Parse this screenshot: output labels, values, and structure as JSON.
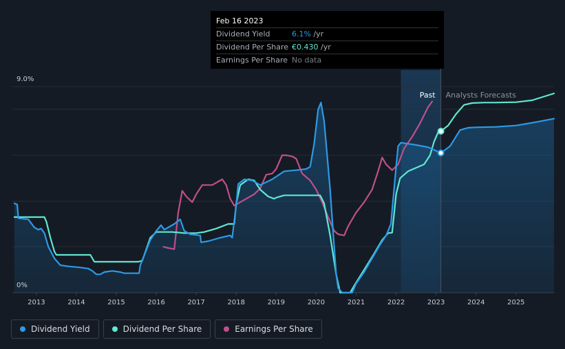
{
  "tooltip": {
    "date": "Feb 16 2023",
    "rows": [
      {
        "label": "Dividend Yield",
        "value": "6.1%",
        "unit": " /yr",
        "color": "#2e9ae6"
      },
      {
        "label": "Dividend Per Share",
        "value": "€0.430",
        "unit": " /yr",
        "color": "#5fe8d2"
      },
      {
        "label": "Earnings Per Share",
        "value": "No data",
        "unit": "",
        "color": "#7a7f87"
      }
    ]
  },
  "legend": [
    {
      "label": "Dividend Yield",
      "color": "#2e9ae6"
    },
    {
      "label": "Dividend Per Share",
      "color": "#5fe8d2"
    },
    {
      "label": "Earnings Per Share",
      "color": "#c04f8a"
    }
  ],
  "chart_data": {
    "type": "line",
    "y_top_label": "9.0%",
    "y_bottom_label": "0%",
    "ylim": [
      0,
      9
    ],
    "xlim": [
      2012.4,
      2025.95
    ],
    "x_ticks": [
      "2013",
      "2014",
      "2015",
      "2016",
      "2017",
      "2018",
      "2019",
      "2020",
      "2021",
      "2022",
      "2023",
      "2024",
      "2025"
    ],
    "divider_x": 2023.12,
    "shade_start_x": 2022.12,
    "past_label": "Past",
    "forecast_label": "Analysts Forecasts",
    "grid": true,
    "series": [
      {
        "name": "Dividend Yield",
        "color": "#2e9ae6",
        "fill": true,
        "points": [
          [
            2012.45,
            3.9
          ],
          [
            2012.52,
            3.85
          ],
          [
            2012.55,
            3.25
          ],
          [
            2012.8,
            3.2
          ],
          [
            2012.95,
            2.85
          ],
          [
            2013.05,
            2.75
          ],
          [
            2013.12,
            2.8
          ],
          [
            2013.2,
            2.6
          ],
          [
            2013.3,
            2.0
          ],
          [
            2013.45,
            1.5
          ],
          [
            2013.55,
            1.3
          ],
          [
            2013.6,
            1.2
          ],
          [
            2013.8,
            1.15
          ],
          [
            2014.1,
            1.1
          ],
          [
            2014.3,
            1.05
          ],
          [
            2014.4,
            0.95
          ],
          [
            2014.5,
            0.8
          ],
          [
            2014.6,
            0.8
          ],
          [
            2014.7,
            0.9
          ],
          [
            2014.9,
            0.95
          ],
          [
            2015.1,
            0.9
          ],
          [
            2015.2,
            0.85
          ],
          [
            2015.5,
            0.85
          ],
          [
            2015.57,
            0.85
          ],
          [
            2015.6,
            1.2
          ],
          [
            2015.85,
            2.3
          ],
          [
            2016.0,
            2.7
          ],
          [
            2016.12,
            2.95
          ],
          [
            2016.2,
            2.75
          ],
          [
            2016.45,
            3.0
          ],
          [
            2016.6,
            3.2
          ],
          [
            2016.7,
            2.7
          ],
          [
            2016.85,
            2.55
          ],
          [
            2017.1,
            2.5
          ],
          [
            2017.12,
            2.2
          ],
          [
            2017.3,
            2.25
          ],
          [
            2017.6,
            2.4
          ],
          [
            2017.85,
            2.5
          ],
          [
            2017.9,
            2.4
          ],
          [
            2018.0,
            3.85
          ],
          [
            2018.05,
            4.75
          ],
          [
            2018.2,
            4.95
          ],
          [
            2018.4,
            4.9
          ],
          [
            2018.6,
            4.7
          ],
          [
            2018.9,
            4.95
          ],
          [
            2019.2,
            5.3
          ],
          [
            2019.5,
            5.35
          ],
          [
            2019.75,
            5.4
          ],
          [
            2019.85,
            5.5
          ],
          [
            2019.95,
            6.5
          ],
          [
            2020.05,
            8.0
          ],
          [
            2020.12,
            8.3
          ],
          [
            2020.2,
            7.5
          ],
          [
            2020.35,
            4.5
          ],
          [
            2020.45,
            2.0
          ],
          [
            2020.5,
            0.8
          ],
          [
            2020.55,
            0.2
          ],
          [
            2020.65,
            0.0
          ],
          [
            2020.9,
            0.0
          ],
          [
            2021.0,
            0.4
          ],
          [
            2021.2,
            0.9
          ],
          [
            2021.4,
            1.5
          ],
          [
            2021.6,
            2.1
          ],
          [
            2021.75,
            2.5
          ],
          [
            2021.87,
            3.0
          ],
          [
            2021.9,
            3.6
          ],
          [
            2022.0,
            5.5
          ],
          [
            2022.05,
            6.4
          ],
          [
            2022.12,
            6.55
          ],
          [
            2022.5,
            6.45
          ],
          [
            2022.8,
            6.35
          ],
          [
            2023.12,
            6.1
          ],
          [
            2023.35,
            6.4
          ],
          [
            2023.6,
            7.1
          ],
          [
            2023.8,
            7.2
          ],
          [
            2024.0,
            7.22
          ],
          [
            2024.5,
            7.24
          ],
          [
            2025.0,
            7.3
          ],
          [
            2025.5,
            7.45
          ],
          [
            2025.95,
            7.6
          ]
        ]
      },
      {
        "name": "Dividend Per Share",
        "color": "#5fe8d2",
        "fill": false,
        "points": [
          [
            2012.45,
            3.3
          ],
          [
            2013.2,
            3.3
          ],
          [
            2013.25,
            3.1
          ],
          [
            2013.35,
            2.4
          ],
          [
            2013.45,
            1.8
          ],
          [
            2013.5,
            1.65
          ],
          [
            2014.35,
            1.65
          ],
          [
            2014.45,
            1.35
          ],
          [
            2015.55,
            1.35
          ],
          [
            2015.65,
            1.4
          ],
          [
            2015.75,
            1.9
          ],
          [
            2015.85,
            2.4
          ],
          [
            2016.0,
            2.65
          ],
          [
            2016.2,
            2.65
          ],
          [
            2016.4,
            2.65
          ],
          [
            2016.7,
            2.6
          ],
          [
            2017.0,
            2.6
          ],
          [
            2017.2,
            2.65
          ],
          [
            2017.5,
            2.8
          ],
          [
            2017.8,
            3.0
          ],
          [
            2017.95,
            3.0
          ],
          [
            2018.0,
            3.9
          ],
          [
            2018.1,
            4.7
          ],
          [
            2018.3,
            4.95
          ],
          [
            2018.45,
            4.9
          ],
          [
            2018.6,
            4.5
          ],
          [
            2018.8,
            4.2
          ],
          [
            2018.95,
            4.1
          ],
          [
            2019.0,
            4.15
          ],
          [
            2019.2,
            4.25
          ],
          [
            2019.5,
            4.25
          ],
          [
            2020.0,
            4.25
          ],
          [
            2020.1,
            4.25
          ],
          [
            2020.2,
            3.9
          ],
          [
            2020.35,
            2.5
          ],
          [
            2020.5,
            0.8
          ],
          [
            2020.6,
            0.0
          ],
          [
            2020.85,
            0.0
          ],
          [
            2020.95,
            0.3
          ],
          [
            2021.2,
            1.0
          ],
          [
            2021.45,
            1.7
          ],
          [
            2021.65,
            2.3
          ],
          [
            2021.8,
            2.6
          ],
          [
            2021.9,
            2.62
          ],
          [
            2022.0,
            4.3
          ],
          [
            2022.1,
            5.0
          ],
          [
            2022.3,
            5.3
          ],
          [
            2022.5,
            5.45
          ],
          [
            2022.7,
            5.6
          ],
          [
            2022.85,
            6.0
          ],
          [
            2022.95,
            6.6
          ],
          [
            2023.05,
            7.0
          ],
          [
            2023.12,
            7.05
          ],
          [
            2023.3,
            7.3
          ],
          [
            2023.5,
            7.8
          ],
          [
            2023.7,
            8.2
          ],
          [
            2023.9,
            8.28
          ],
          [
            2024.2,
            8.3
          ],
          [
            2024.5,
            8.3
          ],
          [
            2025.0,
            8.32
          ],
          [
            2025.4,
            8.4
          ],
          [
            2025.95,
            8.7
          ]
        ]
      },
      {
        "name": "Earnings Per Share",
        "color": "#c04f8a",
        "fill": false,
        "points": [
          [
            2016.18,
            2.0
          ],
          [
            2016.3,
            1.95
          ],
          [
            2016.45,
            1.9
          ],
          [
            2016.55,
            3.5
          ],
          [
            2016.65,
            4.45
          ],
          [
            2016.75,
            4.2
          ],
          [
            2016.9,
            3.95
          ],
          [
            2017.0,
            4.3
          ],
          [
            2017.15,
            4.7
          ],
          [
            2017.4,
            4.7
          ],
          [
            2017.65,
            4.95
          ],
          [
            2017.75,
            4.7
          ],
          [
            2017.85,
            4.1
          ],
          [
            2017.95,
            3.8
          ],
          [
            2018.1,
            3.95
          ],
          [
            2018.25,
            4.1
          ],
          [
            2018.45,
            4.3
          ],
          [
            2018.6,
            4.55
          ],
          [
            2018.75,
            5.15
          ],
          [
            2018.9,
            5.2
          ],
          [
            2019.0,
            5.4
          ],
          [
            2019.15,
            6.0
          ],
          [
            2019.25,
            6.0
          ],
          [
            2019.4,
            5.95
          ],
          [
            2019.5,
            5.85
          ],
          [
            2019.65,
            5.2
          ],
          [
            2019.85,
            4.9
          ],
          [
            2020.0,
            4.5
          ],
          [
            2020.15,
            3.95
          ],
          [
            2020.3,
            3.3
          ],
          [
            2020.45,
            2.7
          ],
          [
            2020.55,
            2.55
          ],
          [
            2020.7,
            2.5
          ],
          [
            2020.8,
            2.9
          ],
          [
            2021.0,
            3.5
          ],
          [
            2021.2,
            3.95
          ],
          [
            2021.4,
            4.5
          ],
          [
            2021.55,
            5.3
          ],
          [
            2021.65,
            5.9
          ],
          [
            2021.75,
            5.6
          ],
          [
            2021.9,
            5.35
          ],
          [
            2022.05,
            5.6
          ],
          [
            2022.2,
            6.3
          ],
          [
            2022.4,
            6.8
          ],
          [
            2022.6,
            7.4
          ],
          [
            2022.8,
            8.1
          ],
          [
            2022.9,
            8.35
          ]
        ]
      }
    ],
    "markers": [
      {
        "series": "Dividend Yield",
        "x": 2023.12,
        "y": 6.1
      },
      {
        "series": "Dividend Per Share",
        "x": 2023.12,
        "y": 7.05
      }
    ]
  }
}
